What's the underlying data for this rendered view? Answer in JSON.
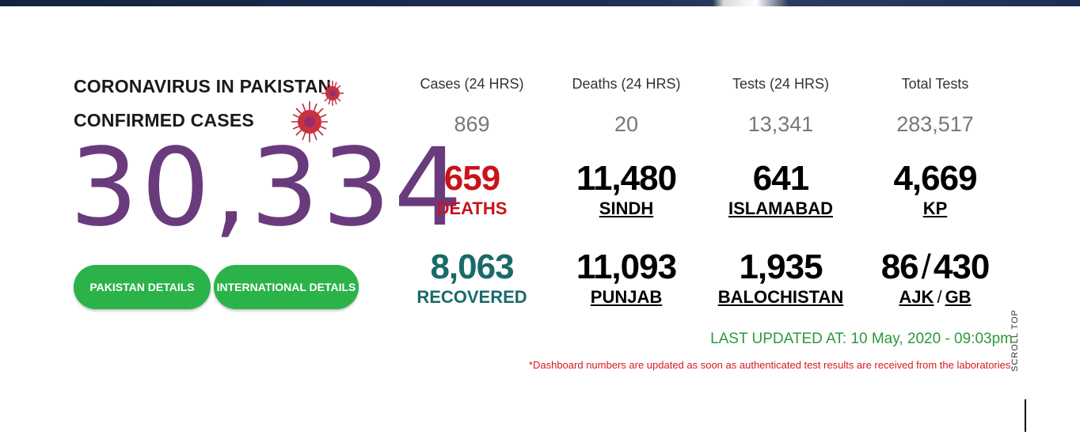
{
  "heading": {
    "line1": "CORONAVIRUS IN PAKISTAN",
    "line2": "CONFIRMED CASES",
    "confirmed": "30,334"
  },
  "buttons": {
    "pakistan": "PAKISTAN DETAILS",
    "international": "INTERNATIONAL DETAILS"
  },
  "summary": [
    {
      "label": "Cases (24 HRS)",
      "value": "869"
    },
    {
      "label": "Deaths (24 HRS)",
      "value": "20"
    },
    {
      "label": "Tests (24 HRS)",
      "value": "13,341"
    },
    {
      "label": "Total Tests",
      "value": "283,517"
    }
  ],
  "stats": {
    "deaths": {
      "value": "659",
      "label": "DEATHS"
    },
    "sindh": {
      "value": "11,480",
      "label": "SINDH"
    },
    "islamabad": {
      "value": "641",
      "label": "ISLAMABAD"
    },
    "kp": {
      "value": "4,669",
      "label": "KP"
    },
    "recovered": {
      "value": "8,063",
      "label": "RECOVERED"
    },
    "punjab": {
      "value": "11,093",
      "label": "PUNJAB"
    },
    "balochistan": {
      "value": "1,935",
      "label": "BALOCHISTAN"
    },
    "ajk": {
      "value": "86",
      "label": "AJK"
    },
    "gb": {
      "value": "430",
      "label": "GB"
    },
    "separator": "/"
  },
  "last_updated": "LAST UPDATED AT: 10 May, 2020 - 09:03pm",
  "note": "*Dashboard numbers are updated as soon as authenticated test results are received from the laboratories.",
  "scroll_top": "SCROLL TOP",
  "colors": {
    "confirmed": "#6a3b7c",
    "button": "#2bb34a",
    "deaths": "#c8131a",
    "recovered": "#1a6a6a",
    "updated": "#2b9a3c"
  },
  "icons": [
    "virus-icon"
  ]
}
